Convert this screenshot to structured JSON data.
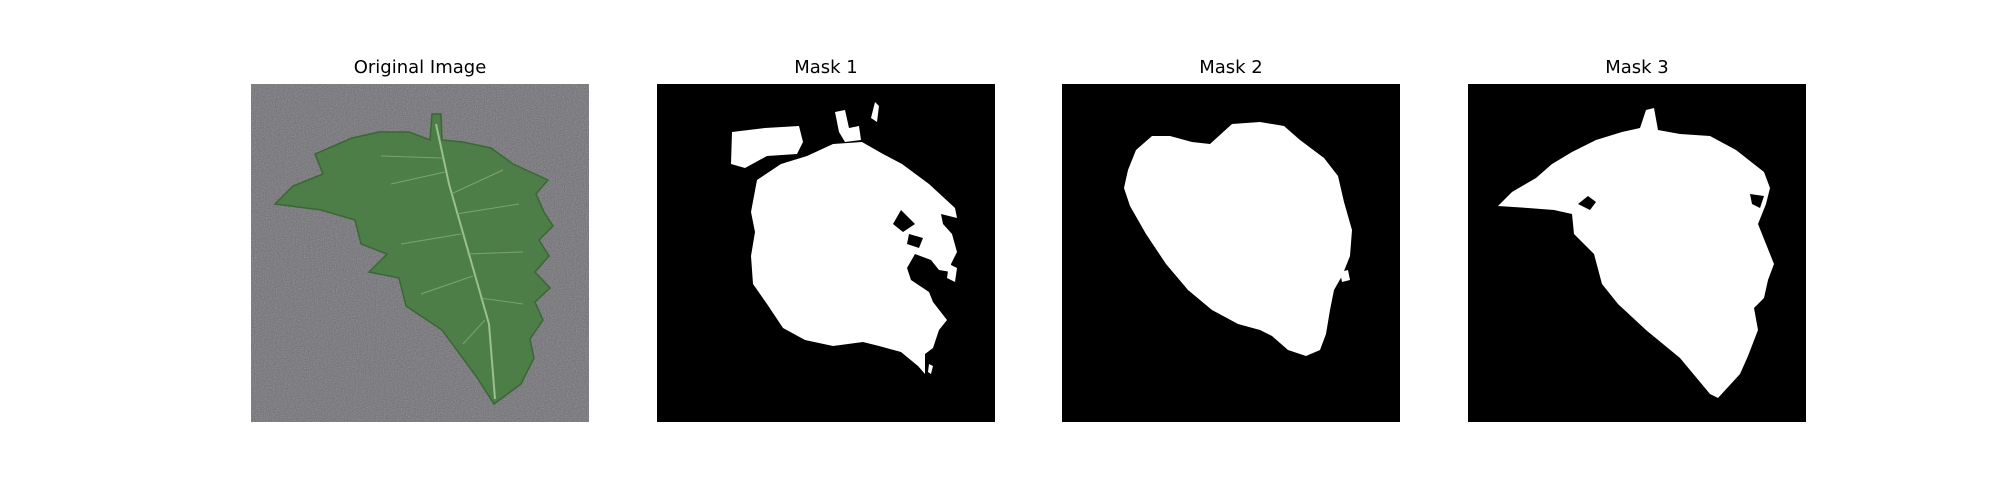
{
  "panels": [
    {
      "title": "Original Image"
    },
    {
      "title": "Mask 1"
    },
    {
      "title": "Mask 2"
    },
    {
      "title": "Mask 3"
    }
  ],
  "colors": {
    "background": "#ffffff",
    "mask_background": "#000000",
    "mask_foreground": "#ffffff",
    "surface": "#6b6b70",
    "leaf": "#4f7f49",
    "leaf_dark": "#3d6838",
    "vein": "#9cbf8e"
  }
}
